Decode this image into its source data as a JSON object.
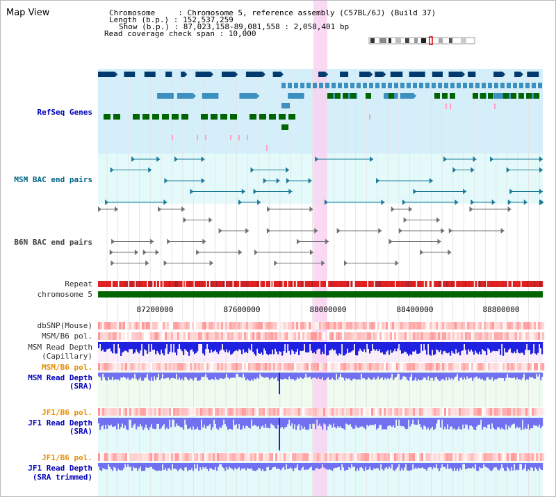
{
  "view_title": "Map View",
  "header": {
    "chromosome_line": "Chromosome     : Chromosome 5, reference assembly (C57BL/6J) (Build 37)",
    "length_line": "Length (b.p.) : 152,537,259",
    "show_line": "Show (b.p.) : 87,023,158-89,081,558 : 2,058,401 bp",
    "coverage_line": "Read coverage check span : 10,000"
  },
  "tracks": {
    "refseq": "RefSeq Genes",
    "msm_bac": "MSM BAC end pairs",
    "b6n_bac": "B6N BAC end pairs",
    "repeat": "Repeat",
    "chromosome": "chromosome 5",
    "dbsnp": "dbSNP(Mouse)",
    "msm_b6_pol_1": "MSM/B6 pol.",
    "msm_depth_cap_1": "MSM Read Depth",
    "msm_depth_cap_2": "(Capillary)",
    "msm_b6_pol_2": "MSM/B6 pol.",
    "msm_depth_sra_1": "MSM Read Depth",
    "msm_depth_sra_2": "(SRA)",
    "jf1_b6_pol_1": "JF1/B6 pol.",
    "jf1_depth_sra_1": "JF1 Read Depth",
    "jf1_depth_sra_2": "(SRA)",
    "jf1_b6_pol_2": "JF1/B6 pol.",
    "jf1_depth_trim_1": "JF1 Read Depth",
    "jf1_depth_trim_2": "(SRA trimmed)"
  },
  "axis_ticks": [
    "87200000",
    "87600000",
    "88000000",
    "88400000",
    "88800000"
  ],
  "colors": {
    "refseq_bg": "#d4effa",
    "bac_bg": "#e4fafa",
    "highlight": "#f9d2f0",
    "gene_dark": "#003a6e",
    "gene_mid": "#3c90c0",
    "gene_green": "#006400",
    "gene_pink": "#ffa0c8",
    "msm_bac": "#1a7a9a",
    "b6n_bac": "#707070",
    "repeat_red": "#e02020",
    "chromosome_green": "#006400",
    "depth_blue": "#2020e0",
    "depth_light_blue": "#7070f0"
  }
}
